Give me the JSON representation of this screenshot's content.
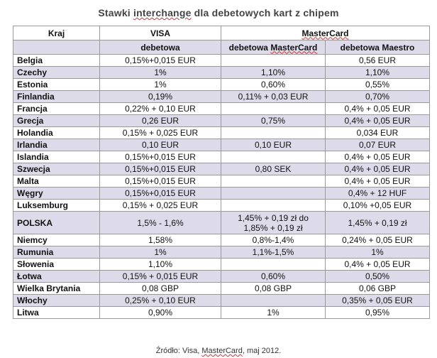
{
  "title": {
    "before": "Stawki ",
    "underlined": "interchange",
    "after": " dla debetowych kart z chipem"
  },
  "header": {
    "kraj": "Kraj",
    "visa": "VISA",
    "mastercard": "MasterCard",
    "visa_sub": "debetowa",
    "mc_sub_prefix": "debetowa ",
    "mc_sub_underlined": "MasterCard",
    "maestro_sub": "debetowa Maestro"
  },
  "rows": [
    {
      "kraj": "Belgia",
      "visa": "0,15%+0,015 EUR",
      "mc": "",
      "maestro": "0,56 EUR"
    },
    {
      "kraj": "Czechy",
      "visa": "1%",
      "mc": "1,10%",
      "maestro": "1,10%"
    },
    {
      "kraj": "Estonia",
      "visa": "1%",
      "mc": "0,60%",
      "maestro": "0,55%"
    },
    {
      "kraj": "Finlandia",
      "visa": "0,19%",
      "mc": "0,11% + 0,03 EUR",
      "maestro": "0,70%"
    },
    {
      "kraj": "Francja",
      "visa": "0,22% + 0,10 EUR",
      "mc": "",
      "maestro": "0,4% + 0,05 EUR"
    },
    {
      "kraj": "Grecja",
      "visa": "0,26 EUR",
      "mc": "0,75%",
      "maestro": "0,4% + 0,05 EUR"
    },
    {
      "kraj": "Holandia",
      "visa": "0,15% + 0,025 EUR",
      "mc": "",
      "maestro": "0,034 EUR"
    },
    {
      "kraj": "Irlandia",
      "visa": "0,10 EUR",
      "mc": "0,10 EUR",
      "maestro": "0,07 EUR"
    },
    {
      "kraj": "Islandia",
      "visa": "0,15%+0,015 EUR",
      "mc": "",
      "maestro": "0,4% + 0,05 EUR"
    },
    {
      "kraj": "Szwecja",
      "visa": "0,15%+0,015 EUR",
      "mc": "0,80 SEK",
      "maestro": "0,4% + 0,05 EUR"
    },
    {
      "kraj": "Malta",
      "visa": "0,15%+0,015 EUR",
      "mc": "",
      "maestro": "0,4% + 0,05 EUR"
    },
    {
      "kraj": "Węgry",
      "visa": "0,15%+0,015 EUR",
      "mc": "",
      "maestro": "0,4% + 12 HUF"
    },
    {
      "kraj": "Luksemburg",
      "visa": "0,15% + 0,025 EUR",
      "mc": "",
      "maestro": "0,10% +0,05 EUR"
    },
    {
      "kraj": "POLSKA",
      "visa": "1,5% - 1,6%",
      "mc": "1,45% + 0,19 zł do",
      "mc2": "1,85% + 0,19 zł",
      "maestro": "1,45% + 0,19 zł"
    },
    {
      "kraj": "Niemcy",
      "visa": "1,58%",
      "mc": "0,8%-1,4%",
      "maestro": "0,24% + 0,05 EUR"
    },
    {
      "kraj": "Rumunia",
      "visa": "1%",
      "mc": "1,1%-1,5%",
      "maestro": "1%"
    },
    {
      "kraj": "Słowenia",
      "visa": "1,10%",
      "mc": "",
      "maestro": "0,4% + 0,05 EUR"
    },
    {
      "kraj": "Łotwa",
      "visa": "0,15% + 0,015 EUR",
      "mc": "0,60%",
      "maestro": "0,50%"
    },
    {
      "kraj": "Wielka Brytania",
      "visa": "0,08 GBP",
      "mc": "0,08 GBP",
      "maestro": "0,06 GBP"
    },
    {
      "kraj": "Włochy",
      "visa": "0,25% + 0,10 EUR",
      "mc": "",
      "maestro": "0,35% + 0,05 EUR"
    },
    {
      "kraj": "Litwa",
      "visa": "0,90%",
      "mc": "1%",
      "maestro": "0,95%"
    }
  ],
  "source": {
    "before": "Źródło: Visa, ",
    "underlined": "MasterCard",
    "after": ", maj 2012."
  }
}
